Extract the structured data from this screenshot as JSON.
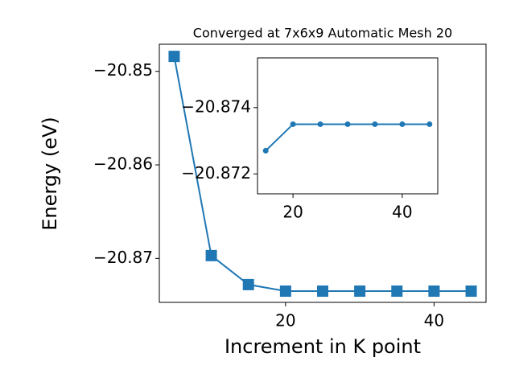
{
  "chart_data": [
    {
      "type": "line",
      "title": "Converged at 7x6x9 Automatic Mesh 20",
      "x_label": "Increment in K point",
      "y_label": "Energy (eV)",
      "x": [
        5,
        10,
        15,
        20,
        25,
        30,
        35,
        40,
        45
      ],
      "values": [
        -20.8484,
        -20.8697,
        -20.8728,
        -20.8735,
        -20.8735,
        -20.8735,
        -20.8735,
        -20.8735,
        -20.8735
      ],
      "color": "#1f77b4",
      "marker": "square",
      "xlim": [
        3,
        47
      ],
      "xticks": [
        20,
        40
      ],
      "ylim": [
        -20.8747,
        -20.8471
      ],
      "yticks": [
        {
          "value": -20.87,
          "label": "−20.87"
        },
        {
          "value": -20.86,
          "label": "−20.86"
        },
        {
          "value": -20.85,
          "label": "−20.85"
        }
      ]
    },
    {
      "type": "line",
      "x": [
        15,
        20,
        25,
        30,
        35,
        40,
        45
      ],
      "values": [
        -20.8727,
        -20.8735,
        -20.8735,
        -20.8735,
        -20.8735,
        -20.8735,
        -20.8735
      ],
      "color": "#1f77b4",
      "marker": "circle",
      "xlim": [
        13.5,
        46.5
      ],
      "xticks": [
        20,
        40
      ],
      "ylim": [
        -20.8714,
        -20.8755
      ],
      "yticks": [
        {
          "value": -20.872,
          "label": "−20.872"
        },
        {
          "value": -20.874,
          "label": "−20.874"
        }
      ]
    }
  ]
}
